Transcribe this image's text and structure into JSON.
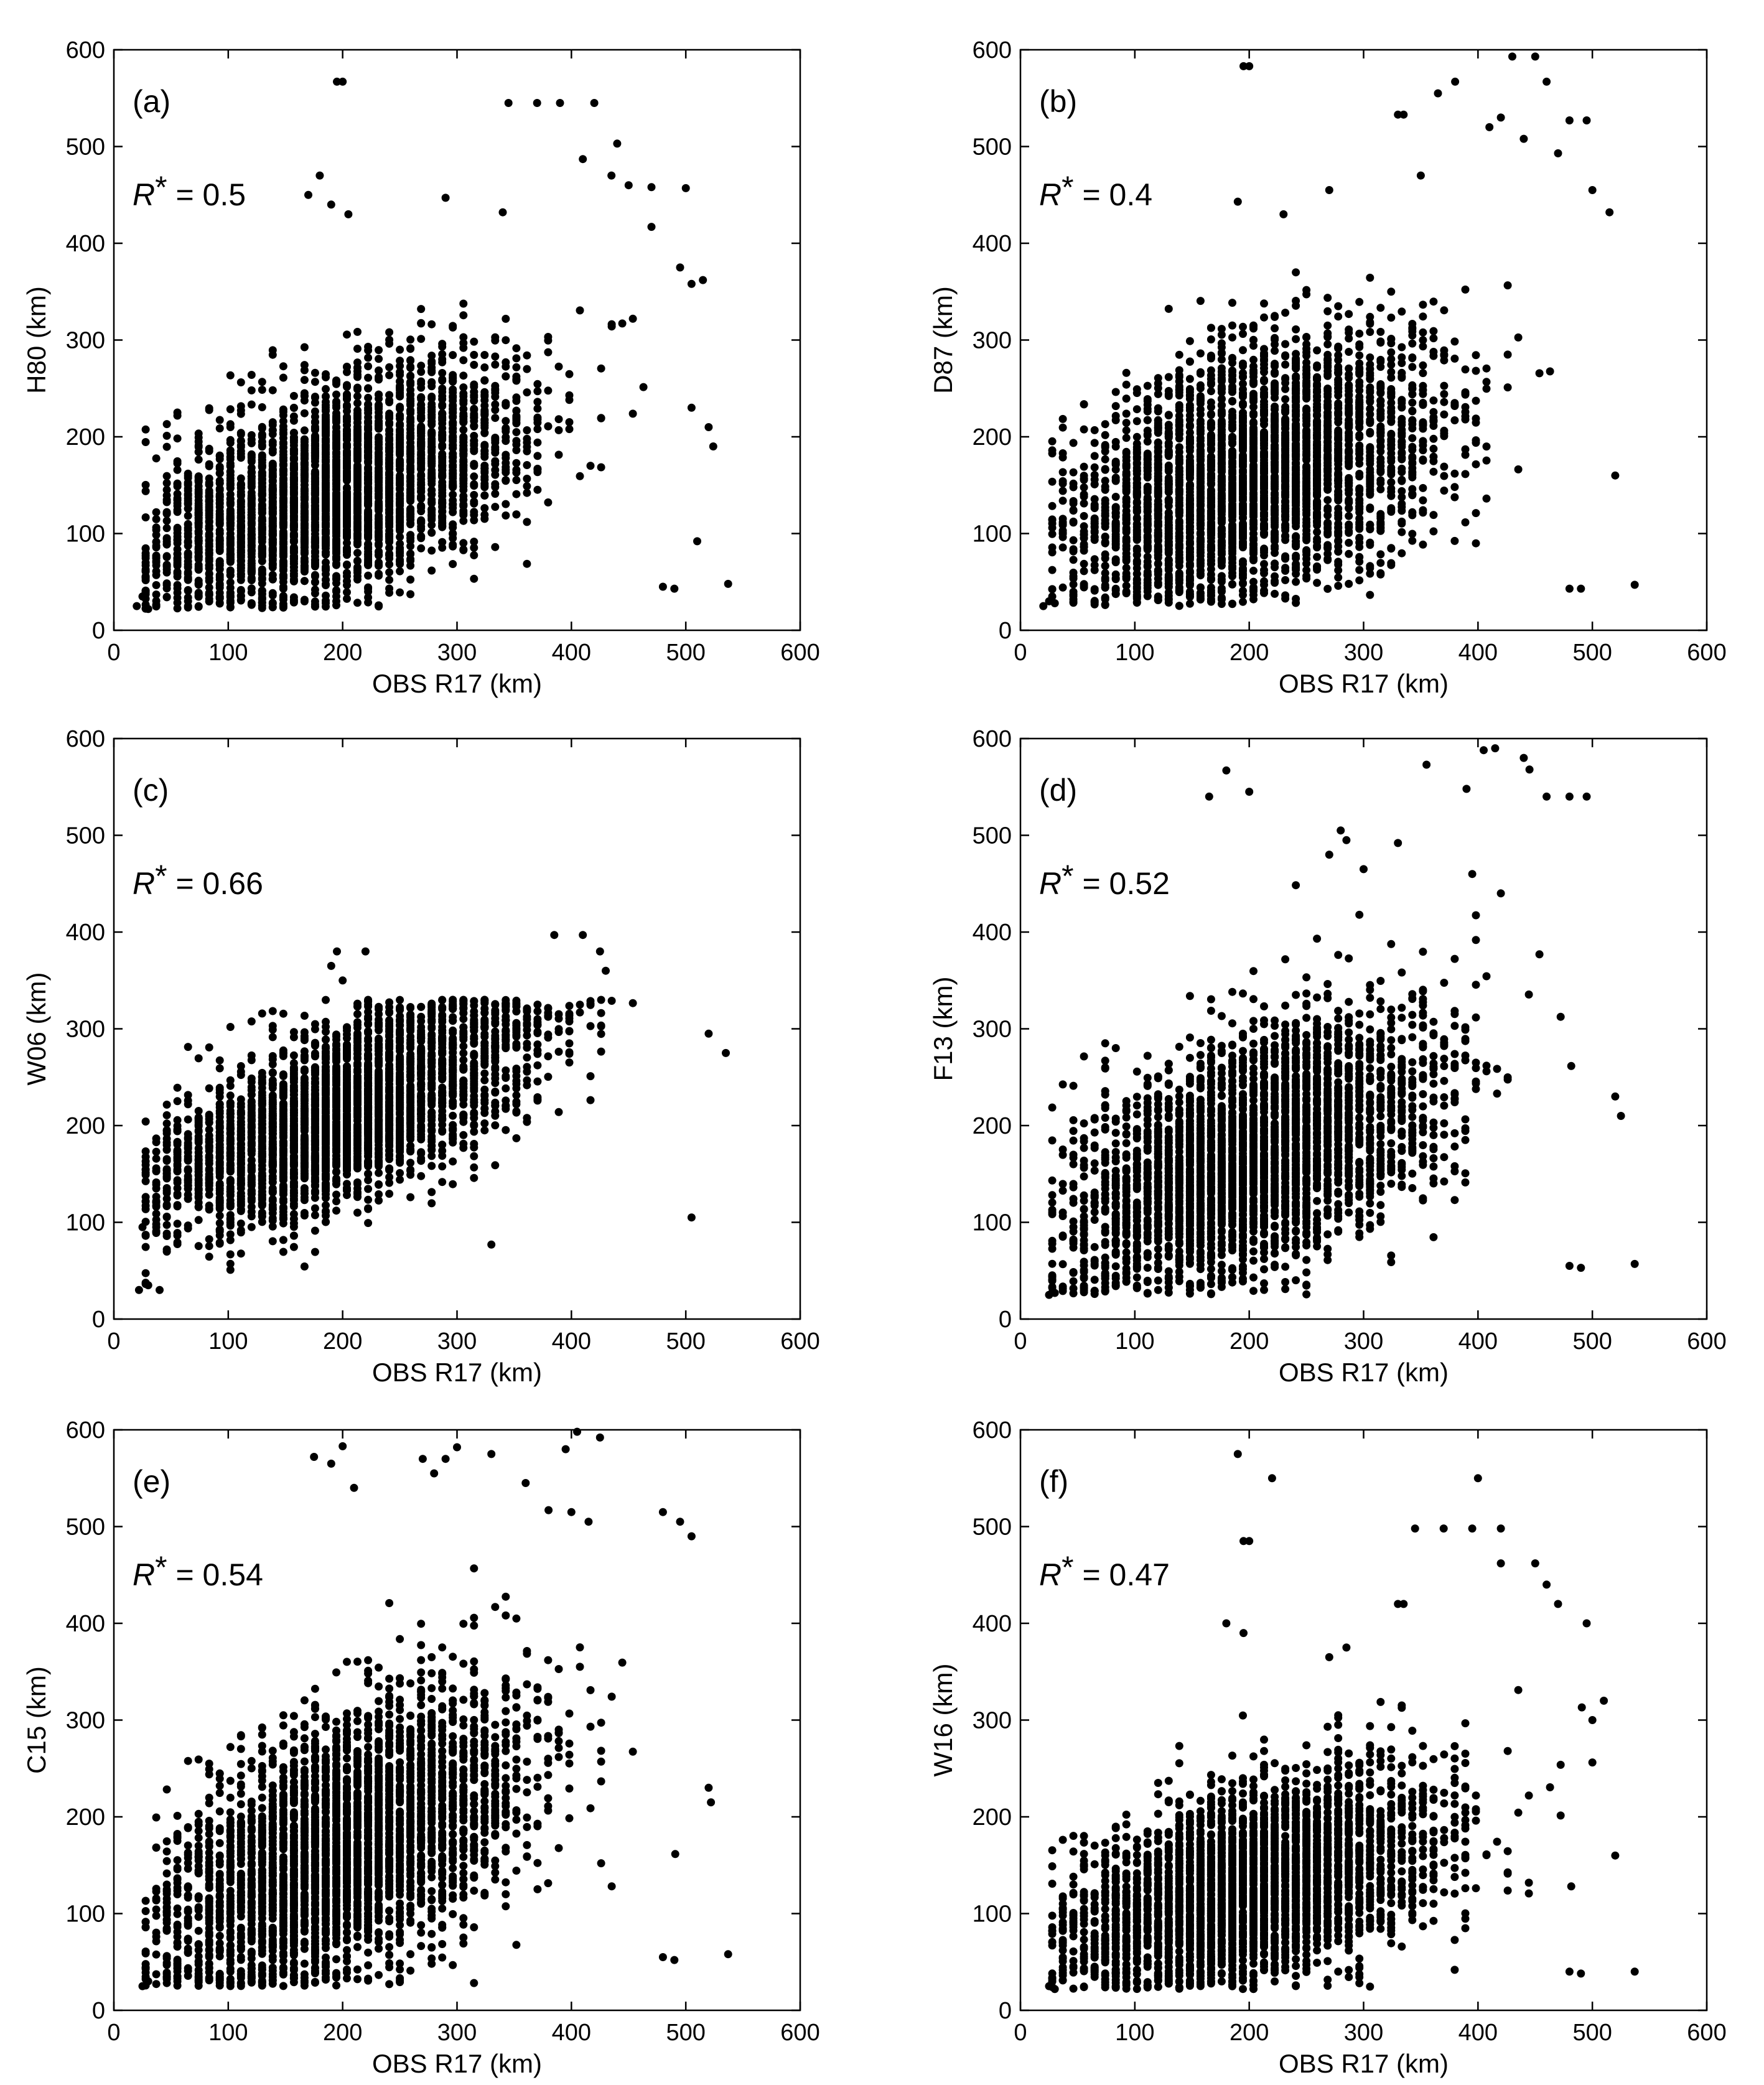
{
  "figure": {
    "background": "#ffffff",
    "marker_color": "#000000"
  },
  "chart_data": [
    {
      "type": "scatter",
      "panel": "(a)",
      "xlabel": "OBS R17 (km)",
      "ylabel": "H80 (km)",
      "stat": {
        "symbol": "R",
        "sup": "*",
        "value": "= 0.5"
      },
      "xlim": [
        0,
        600
      ],
      "ylim": [
        0,
        600
      ],
      "xticks": [
        "0",
        "100",
        "200",
        "300",
        "400",
        "500",
        "600"
      ],
      "yticks": [
        "0",
        "100",
        "200",
        "300",
        "400",
        "500",
        "600"
      ],
      "grid": false,
      "cloud": {
        "n": 3600,
        "mean": [
          190,
          140
        ],
        "sd": [
          80,
          55
        ],
        "corr": 0.5,
        "x_min": 20,
        "x_max": 540,
        "y_min": 22
      },
      "points": [
        [
          195,
          567
        ],
        [
          200,
          567
        ],
        [
          345,
          545
        ],
        [
          370,
          545
        ],
        [
          390,
          545
        ],
        [
          420,
          545
        ],
        [
          180,
          470
        ],
        [
          170,
          450
        ],
        [
          190,
          440
        ],
        [
          205,
          430
        ],
        [
          290,
          447
        ],
        [
          440,
          503
        ],
        [
          410,
          487
        ],
        [
          435,
          470
        ],
        [
          450,
          460
        ],
        [
          470,
          458
        ],
        [
          500,
          457
        ],
        [
          340,
          432
        ],
        [
          470,
          417
        ],
        [
          495,
          375
        ],
        [
          505,
          358
        ],
        [
          515,
          362
        ],
        [
          505,
          230
        ],
        [
          520,
          210
        ],
        [
          524,
          190
        ],
        [
          510,
          92
        ],
        [
          537,
          48
        ],
        [
          480,
          45
        ],
        [
          490,
          43
        ],
        [
          25,
          35
        ],
        [
          30,
          22
        ],
        [
          20,
          25
        ]
      ]
    },
    {
      "type": "scatter",
      "panel": "(b)",
      "xlabel": "OBS R17 (km)",
      "ylabel": "D87 (km)",
      "stat": {
        "symbol": "R",
        "sup": "*",
        "value": "= 0.4"
      },
      "xlim": [
        0,
        600
      ],
      "ylim": [
        0,
        600
      ],
      "xticks": [
        "0",
        "100",
        "200",
        "300",
        "400",
        "500",
        "600"
      ],
      "yticks": [
        "0",
        "100",
        "200",
        "300",
        "400",
        "500",
        "600"
      ],
      "grid": false,
      "cloud": {
        "n": 3600,
        "mean": [
          200,
          155
        ],
        "sd": [
          80,
          62
        ],
        "corr": 0.42,
        "x_min": 20,
        "x_max": 540,
        "y_min": 25
      },
      "points": [
        [
          195,
          583
        ],
        [
          200,
          583
        ],
        [
          430,
          593
        ],
        [
          450,
          593
        ],
        [
          460,
          567
        ],
        [
          380,
          567
        ],
        [
          330,
          533
        ],
        [
          335,
          533
        ],
        [
          365,
          555
        ],
        [
          410,
          520
        ],
        [
          420,
          530
        ],
        [
          440,
          508
        ],
        [
          470,
          493
        ],
        [
          480,
          527
        ],
        [
          495,
          527
        ],
        [
          515,
          432
        ],
        [
          500,
          455
        ],
        [
          190,
          443
        ],
        [
          230,
          430
        ],
        [
          270,
          455
        ],
        [
          350,
          470
        ],
        [
          520,
          160
        ],
        [
          537,
          47
        ],
        [
          480,
          43
        ],
        [
          490,
          43
        ],
        [
          25,
          30
        ],
        [
          30,
          28
        ],
        [
          20,
          25
        ]
      ]
    },
    {
      "type": "scatter",
      "panel": "(c)",
      "xlabel": "OBS R17 (km)",
      "ylabel": "W06 (km)",
      "stat": {
        "symbol": "R",
        "sup": "*",
        "value": "= 0.66"
      },
      "xlim": [
        0,
        600
      ],
      "ylim": [
        0,
        600
      ],
      "xticks": [
        "0",
        "100",
        "200",
        "300",
        "400",
        "500",
        "600"
      ],
      "yticks": [
        "0",
        "100",
        "200",
        "300",
        "400",
        "500",
        "600"
      ],
      "grid": false,
      "cloud": {
        "n": 3600,
        "mean": [
          200,
          210
        ],
        "sd": [
          80,
          55
        ],
        "corr": 0.66,
        "x_min": 20,
        "x_max": 540,
        "y_min": 30,
        "y_max": 330
      },
      "points": [
        [
          195,
          380
        ],
        [
          220,
          380
        ],
        [
          190,
          365
        ],
        [
          200,
          350
        ],
        [
          385,
          397
        ],
        [
          410,
          397
        ],
        [
          425,
          380
        ],
        [
          430,
          360
        ],
        [
          505,
          105
        ],
        [
          330,
          77
        ],
        [
          40,
          30
        ],
        [
          30,
          35
        ],
        [
          22,
          30
        ],
        [
          25,
          95
        ],
        [
          520,
          295
        ],
        [
          535,
          275
        ]
      ]
    },
    {
      "type": "scatter",
      "panel": "(d)",
      "xlabel": "OBS R17 (km)",
      "ylabel": "F13 (km)",
      "stat": {
        "symbol": "R",
        "sup": "*",
        "value": "= 0.52"
      },
      "xlim": [
        0,
        600
      ],
      "ylim": [
        0,
        600
      ],
      "xticks": [
        "0",
        "100",
        "200",
        "300",
        "400",
        "500",
        "600"
      ],
      "yticks": [
        "0",
        "100",
        "200",
        "300",
        "400",
        "500",
        "600"
      ],
      "grid": false,
      "cloud": {
        "n": 3600,
        "mean": [
          200,
          165
        ],
        "sd": [
          80,
          62
        ],
        "corr": 0.52,
        "x_min": 20,
        "x_max": 540,
        "y_min": 25
      },
      "points": [
        [
          180,
          567
        ],
        [
          200,
          545
        ],
        [
          165,
          540
        ],
        [
          405,
          588
        ],
        [
          415,
          590
        ],
        [
          440,
          580
        ],
        [
          445,
          568
        ],
        [
          355,
          573
        ],
        [
          390,
          548
        ],
        [
          480,
          540
        ],
        [
          495,
          540
        ],
        [
          460,
          540
        ],
        [
          330,
          492
        ],
        [
          270,
          480
        ],
        [
          280,
          505
        ],
        [
          285,
          495
        ],
        [
          300,
          465
        ],
        [
          395,
          460
        ],
        [
          420,
          440
        ],
        [
          520,
          230
        ],
        [
          525,
          210
        ],
        [
          537,
          57
        ],
        [
          480,
          55
        ],
        [
          490,
          53
        ],
        [
          25,
          25
        ],
        [
          30,
          27
        ]
      ]
    },
    {
      "type": "scatter",
      "panel": "(e)",
      "xlabel": "OBS R17 (km)",
      "ylabel": "C15 (km)",
      "stat": {
        "symbol": "R",
        "sup": "*",
        "value": "= 0.54"
      },
      "xlim": [
        0,
        600
      ],
      "ylim": [
        0,
        600
      ],
      "xticks": [
        "0",
        "100",
        "200",
        "300",
        "400",
        "500",
        "600"
      ],
      "yticks": [
        "0",
        "100",
        "200",
        "300",
        "400",
        "500",
        "600"
      ],
      "grid": false,
      "cloud": {
        "n": 3600,
        "mean": [
          200,
          165
        ],
        "sd": [
          80,
          72
        ],
        "corr": 0.54,
        "x_min": 20,
        "x_max": 540,
        "y_min": 25
      },
      "points": [
        [
          175,
          572
        ],
        [
          190,
          565
        ],
        [
          200,
          583
        ],
        [
          210,
          540
        ],
        [
          290,
          570
        ],
        [
          300,
          582
        ],
        [
          330,
          575
        ],
        [
          405,
          598
        ],
        [
          425,
          592
        ],
        [
          395,
          580
        ],
        [
          360,
          545
        ],
        [
          380,
          517
        ],
        [
          400,
          515
        ],
        [
          415,
          505
        ],
        [
          480,
          515
        ],
        [
          495,
          505
        ],
        [
          505,
          490
        ],
        [
          280,
          555
        ],
        [
          270,
          570
        ],
        [
          520,
          230
        ],
        [
          522,
          215
        ],
        [
          537,
          58
        ],
        [
          480,
          55
        ],
        [
          490,
          52
        ],
        [
          25,
          25
        ],
        [
          30,
          30
        ]
      ]
    },
    {
      "type": "scatter",
      "panel": "(f)",
      "xlabel": "OBS R17 (km)",
      "ylabel": "W16 (km)",
      "stat": {
        "symbol": "R",
        "sup": "*",
        "value": "= 0.47"
      },
      "xlim": [
        0,
        600
      ],
      "ylim": [
        0,
        600
      ],
      "xticks": [
        "0",
        "100",
        "200",
        "300",
        "400",
        "500",
        "600"
      ],
      "yticks": [
        "0",
        "100",
        "200",
        "300",
        "400",
        "500",
        "600"
      ],
      "grid": false,
      "cloud": {
        "n": 3600,
        "mean": [
          200,
          125
        ],
        "sd": [
          80,
          50
        ],
        "corr": 0.47,
        "x_min": 20,
        "x_max": 540,
        "y_min": 22
      },
      "points": [
        [
          190,
          575
        ],
        [
          220,
          550
        ],
        [
          195,
          485
        ],
        [
          200,
          485
        ],
        [
          400,
          550
        ],
        [
          345,
          498
        ],
        [
          370,
          498
        ],
        [
          395,
          498
        ],
        [
          420,
          498
        ],
        [
          420,
          462
        ],
        [
          450,
          462
        ],
        [
          460,
          440
        ],
        [
          470,
          420
        ],
        [
          495,
          400
        ],
        [
          500,
          300
        ],
        [
          510,
          320
        ],
        [
          520,
          160
        ],
        [
          537,
          40
        ],
        [
          480,
          40
        ],
        [
          490,
          38
        ],
        [
          25,
          25
        ],
        [
          30,
          22
        ],
        [
          180,
          400
        ],
        [
          195,
          390
        ],
        [
          270,
          365
        ],
        [
          285,
          375
        ],
        [
          330,
          420
        ],
        [
          335,
          420
        ]
      ]
    }
  ]
}
